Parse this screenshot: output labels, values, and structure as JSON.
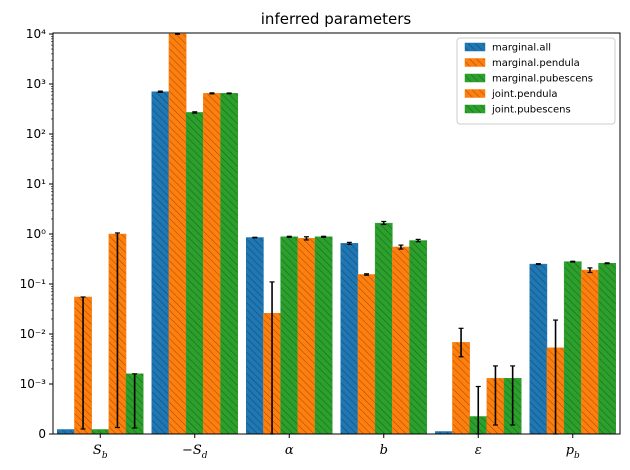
{
  "chart_data": {
    "type": "bar",
    "title": "inferred parameters",
    "xlabel": "",
    "ylabel": "",
    "yscale": "symlog",
    "linthresh": 0.001,
    "ylim": [
      0,
      10000
    ],
    "ytick_labels": [
      "0",
      "10⁻³",
      "10⁻²",
      "10⁻¹",
      "10⁰",
      "10¹",
      "10²",
      "10³",
      "10⁴"
    ],
    "ytick_values": [
      0,
      0.001,
      0.01,
      0.1,
      1,
      10,
      100,
      1000,
      10000
    ],
    "categories": [
      "S_b",
      "−S_d",
      "α",
      "b",
      "ε",
      "p_b"
    ],
    "category_labels": [
      {
        "main": "S",
        "sub": "b"
      },
      {
        "main": "−S",
        "sub": "d"
      },
      {
        "main": "α",
        "sub": ""
      },
      {
        "main": "b",
        "sub": ""
      },
      {
        "main": "ε",
        "sub": ""
      },
      {
        "main": "p",
        "sub": "b"
      }
    ],
    "legend_position": "top-right",
    "series": [
      {
        "name": "marginal.all",
        "color": "#1f77b4",
        "hatch": true,
        "values": [
          9e-05,
          700,
          0.85,
          0.65,
          5e-05,
          0.25
        ],
        "errors": [
          null,
          [
            680,
            720
          ],
          [
            0.84,
            0.86
          ],
          [
            0.62,
            0.68
          ],
          null,
          [
            0.245,
            0.255
          ]
        ]
      },
      {
        "name": "marginal.pendula",
        "color": "#ff7f0e",
        "hatch": true,
        "values": [
          0.055,
          10000,
          0.026,
          0.155,
          0.0068,
          0.0053
        ],
        "errors": [
          [
            0.0001,
            0.055
          ],
          [
            9900,
            10050
          ],
          [
            0.0,
            0.11
          ],
          [
            0.15,
            0.16
          ],
          [
            0.0035,
            0.013
          ],
          [
            0.0,
            0.019
          ]
        ]
      },
      {
        "name": "marginal.pubescens",
        "color": "#2ca02c",
        "hatch": true,
        "values": [
          9e-05,
          270,
          0.88,
          1.65,
          0.00035,
          0.28
        ],
        "errors": [
          null,
          [
            262,
            278
          ],
          [
            0.86,
            0.9
          ],
          [
            1.55,
            1.78
          ],
          [
            0.0,
            0.00095
          ],
          [
            0.275,
            0.285
          ]
        ]
      },
      {
        "name": "joint.pendula",
        "color": "#ff7f0e",
        "hatch": true,
        "values": [
          1.0,
          650,
          0.82,
          0.55,
          0.0013,
          0.19
        ],
        "errors": [
          [
            0.00013,
            1.05
          ],
          [
            635,
            665
          ],
          [
            0.76,
            0.88
          ],
          [
            0.5,
            0.6
          ],
          [
            0.00018,
            0.0023
          ],
          [
            0.17,
            0.21
          ]
        ]
      },
      {
        "name": "joint.pubescens",
        "color": "#2ca02c",
        "hatch": true,
        "values": [
          0.0016,
          650,
          0.88,
          0.74,
          0.0013,
          0.26
        ],
        "errors": [
          [
            0.00012,
            0.0016
          ],
          [
            640,
            660
          ],
          [
            0.86,
            0.9
          ],
          [
            0.7,
            0.78
          ],
          [
            0.00018,
            0.0023
          ],
          [
            0.255,
            0.265
          ]
        ]
      }
    ]
  }
}
